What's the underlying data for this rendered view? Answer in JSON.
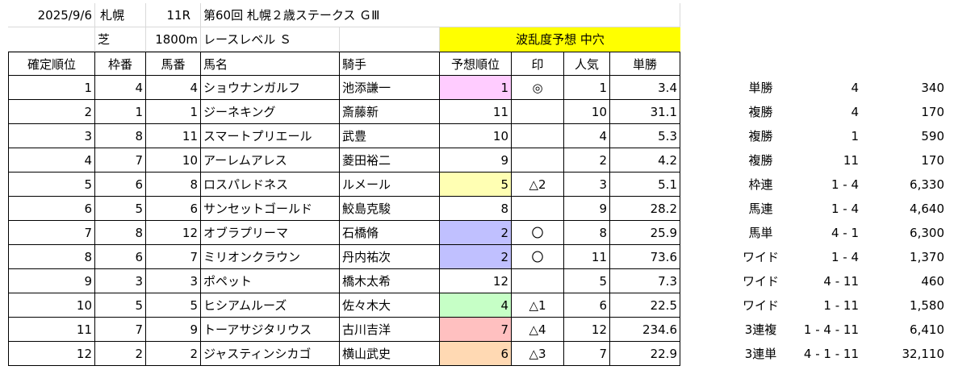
{
  "meta": {
    "date": "2025/9/6",
    "venue": "札幌",
    "race_no": "11R",
    "race_name": "第60回 札幌２歳ステークス ＧⅢ",
    "surface": "芝",
    "distance": "1800m",
    "race_level": "レースレベル Ｓ",
    "forecast": "波乱度予想 中穴"
  },
  "headers": [
    "確定順位",
    "枠番",
    "馬番",
    "馬名",
    "騎手",
    "予想順位",
    "印",
    "人気",
    "単勝"
  ],
  "rows": [
    {
      "rank": "1",
      "waku": "4",
      "uma": "4",
      "name": "ショウナンガルフ",
      "jockey": "池添謙一",
      "pred": "1",
      "mark": "◎",
      "pop": "1",
      "odds": "3.4",
      "pred_color": "#ffccff"
    },
    {
      "rank": "2",
      "waku": "1",
      "uma": "1",
      "name": "ジーネキング",
      "jockey": "斎藤新",
      "pred": "11",
      "mark": "",
      "pop": "10",
      "odds": "31.1",
      "pred_color": ""
    },
    {
      "rank": "3",
      "waku": "8",
      "uma": "11",
      "name": "スマートプリエール",
      "jockey": "武豊",
      "pred": "10",
      "mark": "",
      "pop": "4",
      "odds": "5.3",
      "pred_color": ""
    },
    {
      "rank": "4",
      "waku": "7",
      "uma": "10",
      "name": "アーレムアレス",
      "jockey": "菱田裕二",
      "pred": "9",
      "mark": "",
      "pop": "2",
      "odds": "4.2",
      "pred_color": ""
    },
    {
      "rank": "5",
      "waku": "6",
      "uma": "8",
      "name": "ロスパレドネス",
      "jockey": "ルメール",
      "pred": "5",
      "mark": "△2",
      "pop": "3",
      "odds": "5.1",
      "pred_color": "#ffffb3"
    },
    {
      "rank": "6",
      "waku": "5",
      "uma": "6",
      "name": "サンセットゴールド",
      "jockey": "鮫島克駿",
      "pred": "8",
      "mark": "",
      "pop": "9",
      "odds": "28.2",
      "pred_color": ""
    },
    {
      "rank": "7",
      "waku": "8",
      "uma": "12",
      "name": "オブラプリーマ",
      "jockey": "石橋脩",
      "pred": "2",
      "mark": "〇",
      "pop": "8",
      "odds": "25.9",
      "pred_color": "#c0c0ff"
    },
    {
      "rank": "8",
      "waku": "6",
      "uma": "7",
      "name": "ミリオンクラウン",
      "jockey": "丹内祐次",
      "pred": "2",
      "mark": "〇",
      "pop": "11",
      "odds": "73.6",
      "pred_color": "#c0c0ff"
    },
    {
      "rank": "9",
      "waku": "3",
      "uma": "3",
      "name": "ポペット",
      "jockey": "橋木太希",
      "pred": "12",
      "mark": "",
      "pop": "5",
      "odds": "7.3",
      "pred_color": ""
    },
    {
      "rank": "10",
      "waku": "5",
      "uma": "5",
      "name": "ヒシアムルーズ",
      "jockey": "佐々木大",
      "pred": "4",
      "mark": "△1",
      "pop": "6",
      "odds": "22.5",
      "pred_color": "#c6ffc6"
    },
    {
      "rank": "11",
      "waku": "7",
      "uma": "9",
      "name": "トーアサジタリウス",
      "jockey": "古川吉洋",
      "pred": "7",
      "mark": "△4",
      "pop": "12",
      "odds": "234.6",
      "pred_color": "#ffc0c0"
    },
    {
      "rank": "12",
      "waku": "2",
      "uma": "2",
      "name": "ジャスティンシカゴ",
      "jockey": "横山武史",
      "pred": "6",
      "mark": "△3",
      "pop": "7",
      "odds": "22.9",
      "pred_color": "#ffd9b3"
    }
  ],
  "payouts": [
    {
      "type": "単勝",
      "combo": "4",
      "amount": "340"
    },
    {
      "type": "複勝",
      "combo": "4",
      "amount": "170"
    },
    {
      "type": "複勝",
      "combo": "1",
      "amount": "590"
    },
    {
      "type": "複勝",
      "combo": "11",
      "amount": "170"
    },
    {
      "type": "枠連",
      "combo": "1 - 4",
      "amount": "6,330"
    },
    {
      "type": "馬連",
      "combo": "1 - 4",
      "amount": "4,640"
    },
    {
      "type": "馬単",
      "combo": "4 - 1",
      "amount": "6,300"
    },
    {
      "type": "ワイド",
      "combo": "1 - 4",
      "amount": "1,370"
    },
    {
      "type": "ワイド",
      "combo": "4 - 11",
      "amount": "460"
    },
    {
      "type": "ワイド",
      "combo": "1 - 11",
      "amount": "1,580"
    },
    {
      "type": "3連複",
      "combo": "1 - 4 - 11",
      "amount": "6,410"
    },
    {
      "type": "3連単",
      "combo": "4 - 1 - 11",
      "amount": "32,110"
    }
  ],
  "colors": {
    "forecast_bg": "#ffff00",
    "gridline": "#d9d9d9",
    "border": "#000000"
  }
}
